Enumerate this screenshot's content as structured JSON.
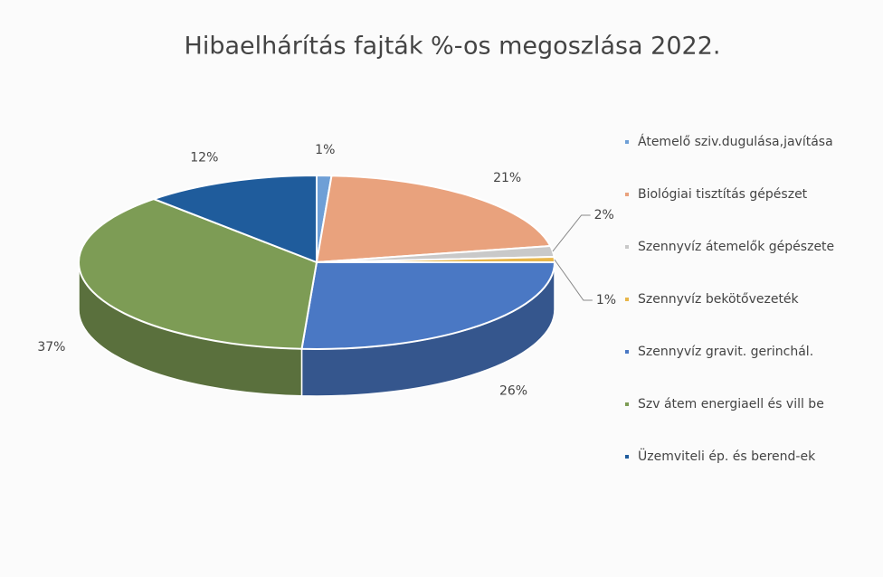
{
  "chart_data": {
    "type": "pie3d",
    "title": "Hibaelhárítás fajták %-os megoszlása 2022.",
    "categories": [
      "Átemelő sziv.dugulása,javítása",
      "Biológiai tisztítás gépészet",
      "Szennyvíz átemelők gépészete",
      "Szennyvíz bekötővezeték",
      "Szennyvíz gravit. gerinchál.",
      "Szv átem energiaell és vill be",
      "Üzemviteli ép. és berend-ek"
    ],
    "values": [
      1,
      21,
      2,
      1,
      26,
      37,
      12
    ],
    "value_labels": [
      "1%",
      "21%",
      "2%",
      "1%",
      "26%",
      "37%",
      "12%"
    ],
    "colors": [
      "#6e9fd6",
      "#e9a27d",
      "#c9c9c9",
      "#e8b64a",
      "#4a78c4",
      "#7d9c55",
      "#1f5c9c"
    ],
    "legend": "right"
  }
}
